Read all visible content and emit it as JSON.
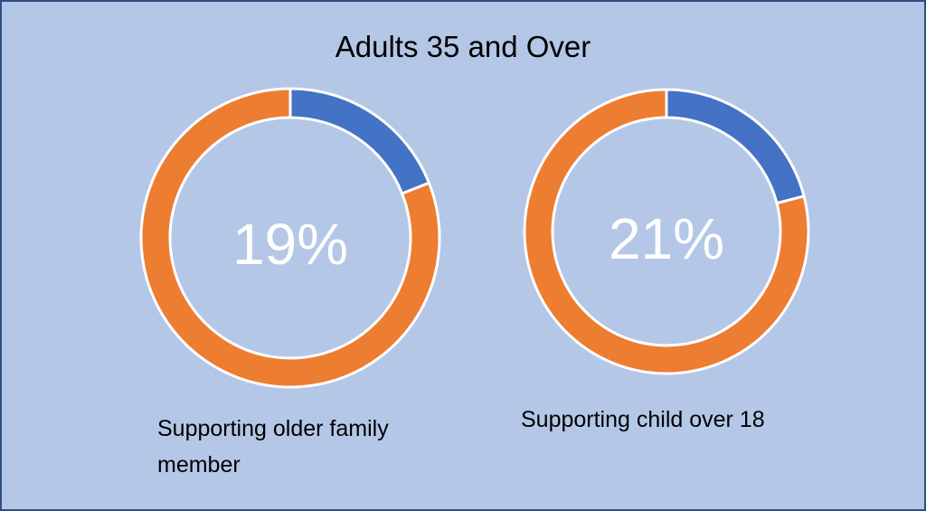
{
  "title": "Adults 35 and Over",
  "colors": {
    "background": "#b4c7e7",
    "share": "#4472c4",
    "remainder": "#ed7d31",
    "center_text": "#ffffff"
  },
  "chart_data": [
    {
      "type": "pie",
      "variant": "donut",
      "caption": "Supporting older family member",
      "center_label": "19%",
      "slices": [
        {
          "value": 19,
          "color": "#4472c4"
        },
        {
          "value": 81,
          "color": "#ed7d31"
        }
      ]
    },
    {
      "type": "pie",
      "variant": "donut",
      "caption": "Supporting child over 18",
      "center_label": "21%",
      "slices": [
        {
          "value": 21,
          "color": "#4472c4"
        },
        {
          "value": 79,
          "color": "#ed7d31"
        }
      ]
    }
  ]
}
